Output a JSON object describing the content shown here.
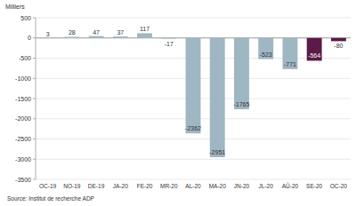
{
  "chart_data": {
    "type": "bar",
    "y_label": "Milliers",
    "source": "Source: Institut de recherche ADP",
    "categories": [
      "OC-19",
      "NO-19",
      "DE-19",
      "JA-20",
      "FE-20",
      "MR-20",
      "AL-20",
      "MA-20",
      "JN-20",
      "JL-20",
      "AÛ-20",
      "SE-20",
      "OC-20"
    ],
    "values": [
      3,
      28,
      47,
      37,
      117,
      -17,
      -2362,
      -2951,
      -1765,
      -523,
      -771,
      -564,
      -80
    ],
    "colors": [
      "#9fb6c3",
      "#9fb6c3",
      "#9fb6c3",
      "#9fb6c3",
      "#9fb6c3",
      "#9fb6c3",
      "#9fb6c3",
      "#9fb6c3",
      "#9fb6c3",
      "#9fb6c3",
      "#9fb6c3",
      "#5c1a48",
      "#5c1a48"
    ],
    "ylim": [
      -3500,
      500
    ],
    "yticks": [
      -3500,
      -3000,
      -2500,
      -2000,
      -1500,
      -1000,
      -500,
      0,
      500
    ],
    "grid": true,
    "data_labels": true
  }
}
